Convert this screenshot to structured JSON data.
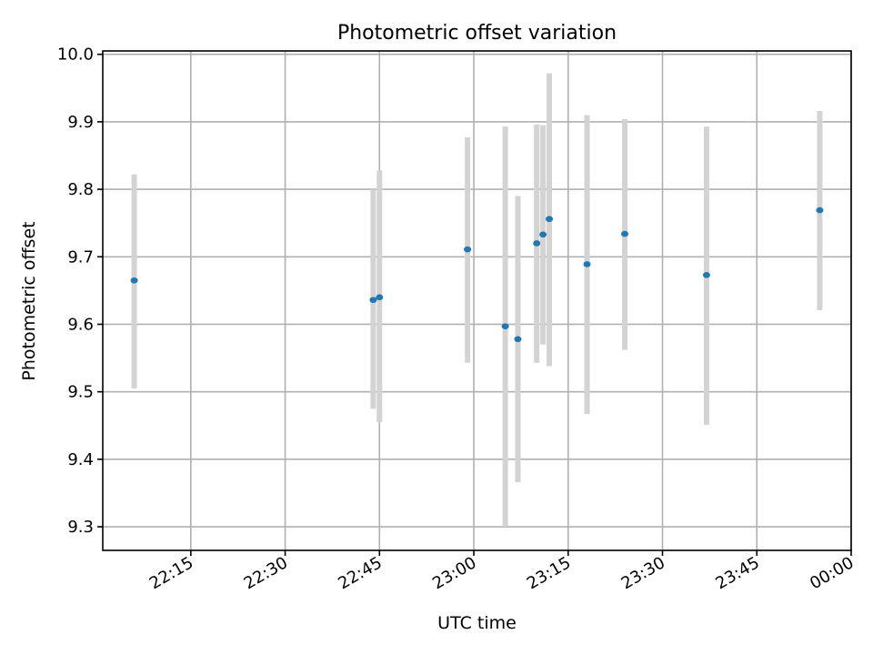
{
  "chart_data": {
    "type": "scatter",
    "title": "Photometric offset variation",
    "xlabel": "UTC time",
    "ylabel": "Photometric offset",
    "x_ticks": [
      "22:15",
      "22:30",
      "22:45",
      "23:00",
      "23:15",
      "23:30",
      "23:45",
      "00:00"
    ],
    "y_ticks": [
      "9.3",
      "9.4",
      "9.5",
      "9.6",
      "9.7",
      "9.8",
      "9.9",
      "10.0"
    ],
    "xlim": [
      "22:01",
      "00:00"
    ],
    "ylim": [
      9.265,
      10.005
    ],
    "grid": true,
    "colors": {
      "points": "#1f77b4",
      "errorbars": "#d3d3d3"
    },
    "points": [
      {
        "x": "22:06",
        "y": 9.665,
        "ylow": 9.505,
        "yhigh": 9.822
      },
      {
        "x": "22:44",
        "y": 9.636,
        "ylow": 9.475,
        "yhigh": 9.8
      },
      {
        "x": "22:45",
        "y": 9.64,
        "ylow": 9.455,
        "yhigh": 9.828
      },
      {
        "x": "22:59",
        "y": 9.711,
        "ylow": 9.543,
        "yhigh": 9.877
      },
      {
        "x": "23:05",
        "y": 9.597,
        "ylow": 9.3,
        "yhigh": 9.893
      },
      {
        "x": "23:07",
        "y": 9.578,
        "ylow": 9.366,
        "yhigh": 9.79
      },
      {
        "x": "23:10",
        "y": 9.72,
        "ylow": 9.543,
        "yhigh": 9.896
      },
      {
        "x": "23:11",
        "y": 9.733,
        "ylow": 9.57,
        "yhigh": 9.895
      },
      {
        "x": "23:12",
        "y": 9.756,
        "ylow": 9.538,
        "yhigh": 9.972
      },
      {
        "x": "23:18",
        "y": 9.689,
        "ylow": 9.467,
        "yhigh": 9.91
      },
      {
        "x": "23:24",
        "y": 9.734,
        "ylow": 9.562,
        "yhigh": 9.904
      },
      {
        "x": "23:37",
        "y": 9.673,
        "ylow": 9.451,
        "yhigh": 9.893
      },
      {
        "x": "23:55",
        "y": 9.769,
        "ylow": 9.621,
        "yhigh": 9.916
      }
    ]
  }
}
